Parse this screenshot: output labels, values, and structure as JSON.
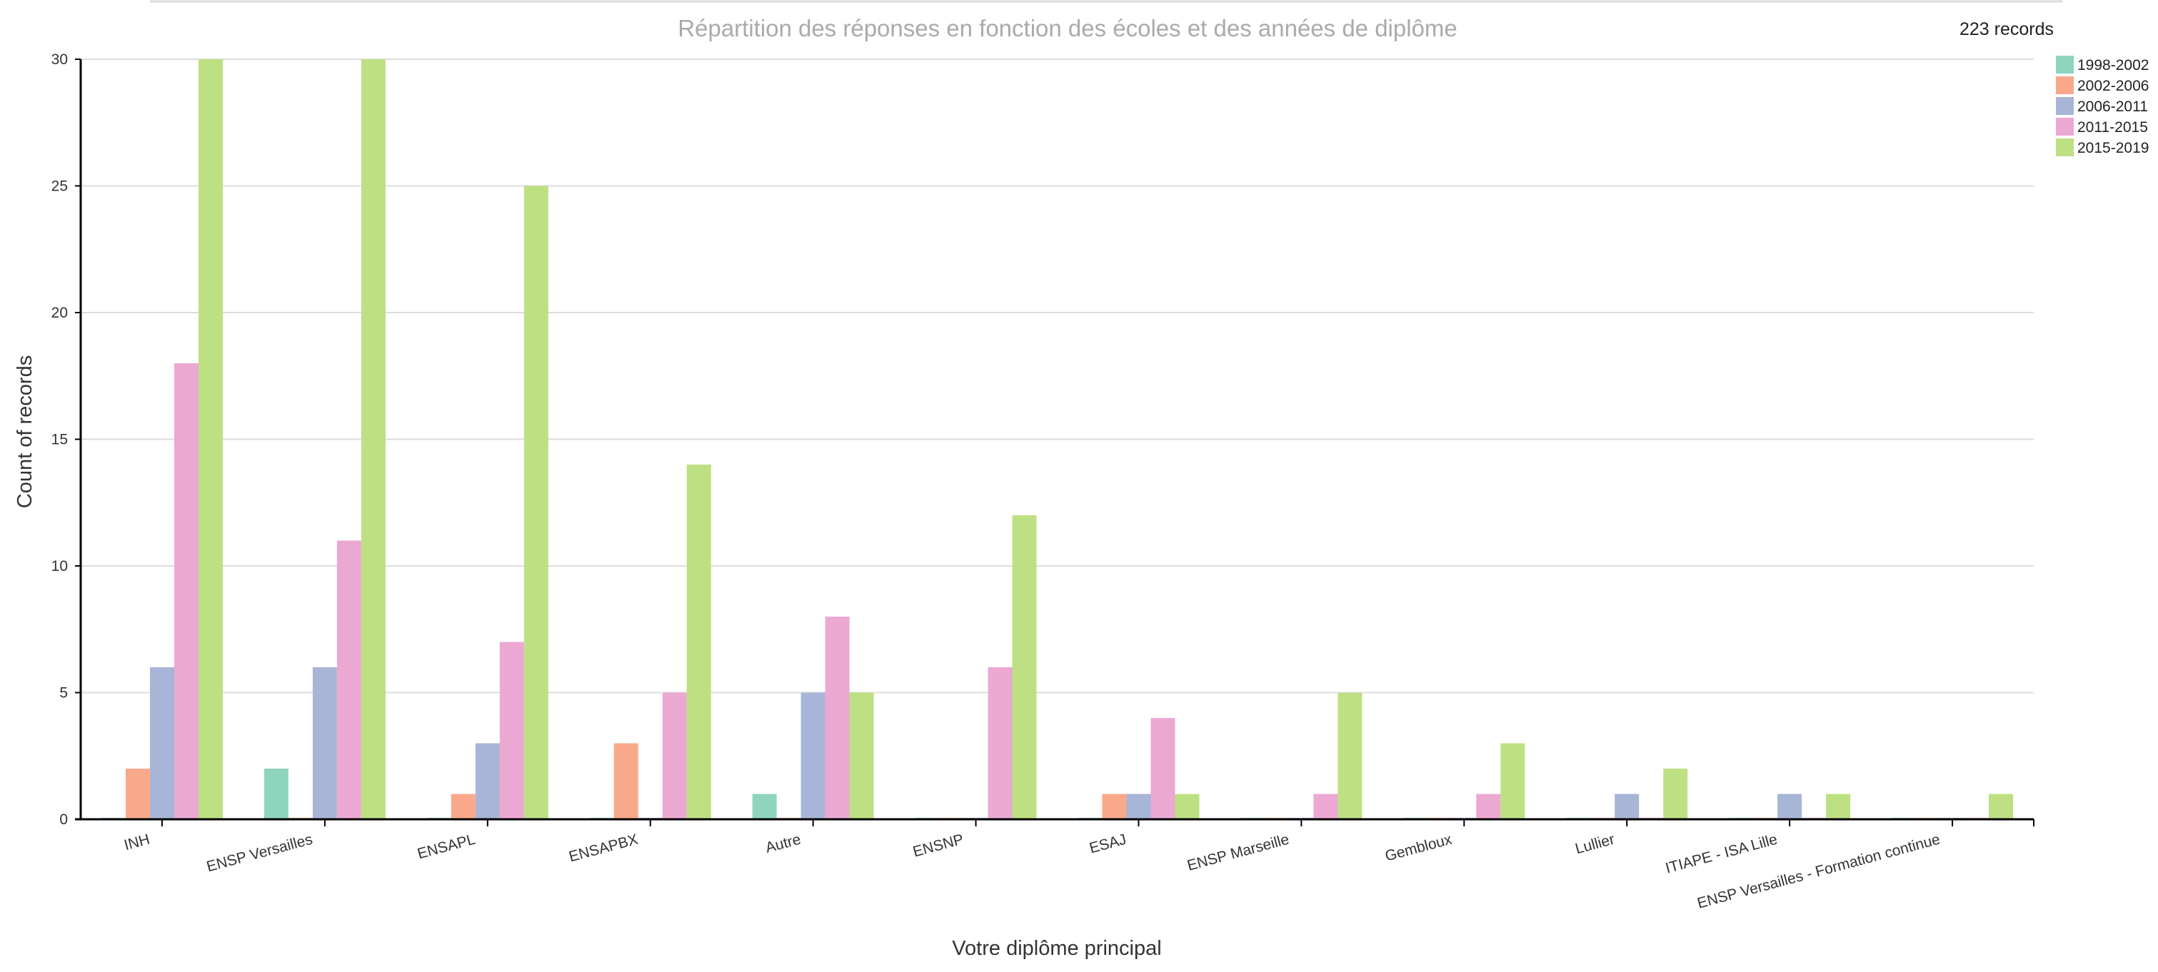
{
  "chart_data": {
    "type": "bar",
    "title": "Répartition des réponses en fonction des écoles et des années de diplôme",
    "record_count": "223 records",
    "xlabel": "Votre diplôme principal",
    "ylabel": "Count of records",
    "ylim": [
      0,
      30
    ],
    "yticks": [
      "0",
      "5",
      "10",
      "15",
      "20",
      "25",
      "30"
    ],
    "grid": true,
    "legend_position": "top-right",
    "categories": [
      "INH",
      "ENSP Versailles",
      "ENSAPL",
      "ENSAPBX",
      "Autre",
      "ENSNP",
      "ESAJ",
      "ENSP Marseille",
      "Gembloux",
      "Lullier",
      "ITIAPE - ISA Lille",
      "ENSP Versailles - Formation continue"
    ],
    "series": [
      {
        "name": "1998-2002",
        "color": "#8fd4bd",
        "values": [
          0,
          2,
          0,
          0,
          1,
          0,
          0,
          0,
          0,
          0,
          0,
          0
        ]
      },
      {
        "name": "2002-2006",
        "color": "#f9a98a",
        "values": [
          2,
          0,
          1,
          3,
          0,
          0,
          1,
          0,
          0,
          0,
          0,
          0
        ]
      },
      {
        "name": "2006-2011",
        "color": "#a7b5d7",
        "values": [
          6,
          6,
          3,
          0,
          5,
          0,
          1,
          0,
          0,
          1,
          1,
          0
        ]
      },
      {
        "name": "2011-2015",
        "color": "#eba8d3",
        "values": [
          18,
          11,
          7,
          5,
          8,
          6,
          4,
          1,
          1,
          0,
          0,
          0
        ]
      },
      {
        "name": "2015-2019",
        "color": "#bde083",
        "values": [
          30,
          30,
          25,
          14,
          5,
          12,
          1,
          5,
          3,
          2,
          1,
          1
        ]
      }
    ]
  }
}
